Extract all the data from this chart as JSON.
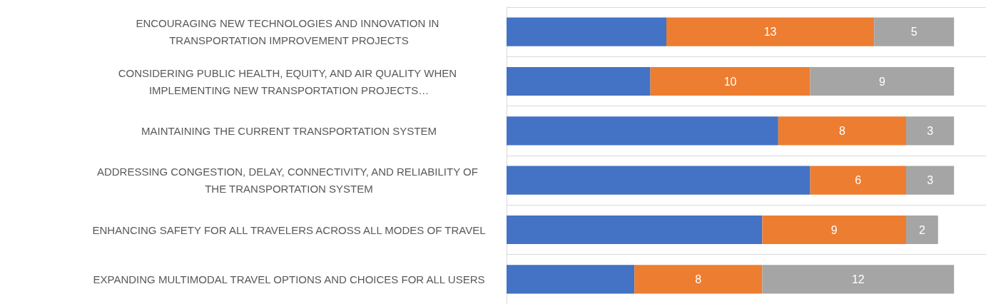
{
  "chart_data": {
    "type": "bar",
    "orientation": "horizontal",
    "stacked": true,
    "categories": [
      "ENCOURAGING NEW TECHNOLOGIES AND INNOVATION IN TRANSPORTATION IMPROVEMENT PROJECTS",
      "CONSIDERING PUBLIC HEALTH, EQUITY, AND AIR QUALITY WHEN IMPLEMENTING NEW TRANSPORTATION PROJECTS…",
      "MAINTAINING THE CURRENT TRANSPORTATION SYSTEM",
      "ADDRESSING CONGESTION, DELAY, CONNECTIVITY, AND RELIABILITY OF THE TRANSPORTATION SYSTEM",
      "ENHANCING SAFETY FOR ALL TRAVELERS ACROSS ALL MODES OF TRAVEL",
      "EXPANDING MULTIMODAL TRAVEL OPTIONS AND CHOICES FOR ALL USERS"
    ],
    "xlim": [
      0,
      30
    ],
    "tick_labels": "y",
    "grid": "y",
    "series": [
      {
        "color": "#4472c4",
        "values": [
          10,
          9,
          17,
          19,
          16,
          8
        ],
        "value_labels": [
          null,
          null,
          null,
          null,
          null,
          null
        ]
      },
      {
        "color": "#ed7d31",
        "values": [
          13,
          10,
          8,
          6,
          9,
          8
        ],
        "value_labels": [
          "13",
          "10",
          "8",
          "6",
          "9",
          "8"
        ]
      },
      {
        "color": "#a5a5a5",
        "values": [
          5,
          9,
          3,
          3,
          2,
          12
        ],
        "value_labels": [
          "5",
          "9",
          "3",
          "3",
          "2",
          "12"
        ]
      }
    ]
  }
}
